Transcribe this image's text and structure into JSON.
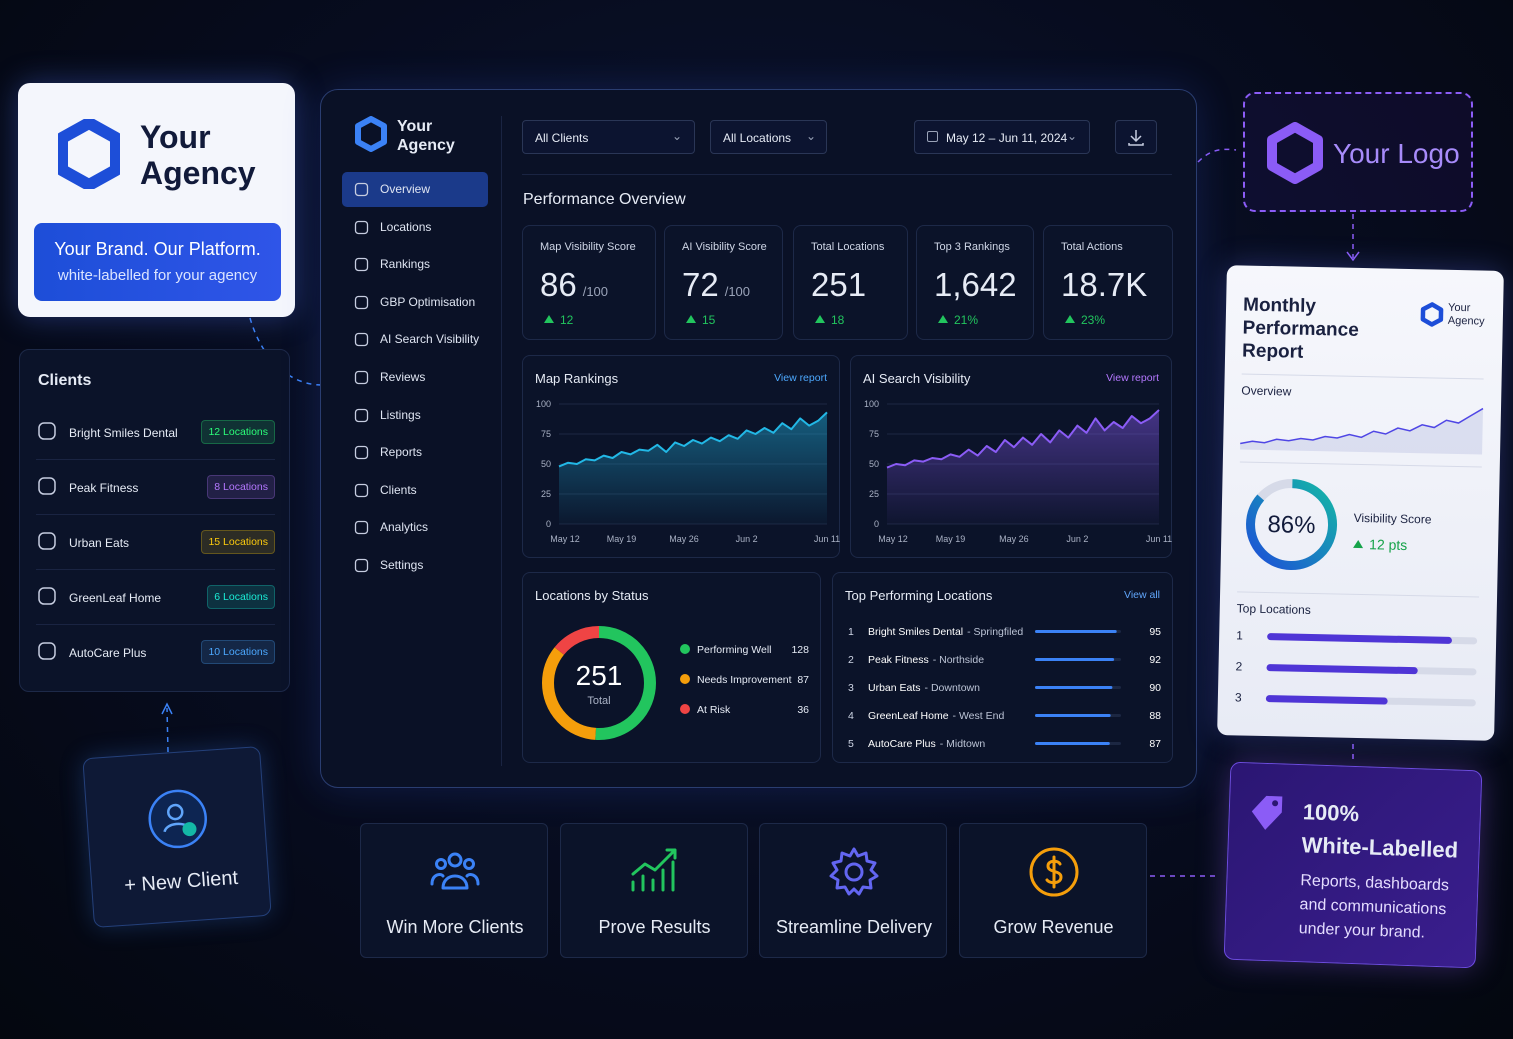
{
  "agency_card": {
    "name": [
      "Your",
      "Agency"
    ],
    "tagline": "Your Brand. Our Platform.",
    "subtitle": "white-labelled for your agency"
  },
  "clients": {
    "title": "Clients",
    "items": [
      {
        "name": "Bright Smiles Dental",
        "badge": "12 Locations",
        "color": "#22c55e"
      },
      {
        "name": "Peak Fitness",
        "badge": "8 Locations",
        "color": "#8b5cf6"
      },
      {
        "name": "Urban Eats",
        "badge": "15 Locations",
        "color": "#f59e0b"
      },
      {
        "name": "GreenLeaf Home",
        "badge": "6 Locations",
        "color": "#14b8a6"
      },
      {
        "name": "AutoCare Plus",
        "badge": "10 Locations",
        "color": "#3b82f6"
      }
    ]
  },
  "new_client": "+ New Client",
  "dashboard": {
    "brand": [
      "Your",
      "Agency"
    ],
    "nav": [
      "Overview",
      "Locations",
      "Rankings",
      "GBP Optimisation",
      "AI Search Visibility",
      "Reviews",
      "Listings",
      "Reports",
      "Clients",
      "Analytics",
      "Settings"
    ],
    "filters": {
      "clients": "All Clients",
      "locations": "All Locations",
      "dates": "May 12 – Jun 11, 2024"
    },
    "heading": "Performance Overview",
    "kpis": [
      {
        "label": "Map Visibility Score",
        "value": "86",
        "unit": "/100",
        "delta": "12"
      },
      {
        "label": "AI Visibility Score",
        "value": "72",
        "unit": "/100",
        "delta": "15"
      },
      {
        "label": "Total Locations",
        "value": "251",
        "delta": "18"
      },
      {
        "label": "Top 3 Rankings",
        "value": "1,642",
        "delta": "21%"
      },
      {
        "label": "Total Actions",
        "value": "18.7K",
        "delta": "23%"
      }
    ],
    "charts": [
      {
        "type": "line",
        "title": "Map Rankings",
        "link": "View report",
        "color": "#22b8e6",
        "categories": [
          "May 12",
          null,
          null,
          null,
          null,
          null,
          null,
          "May 19",
          null,
          null,
          null,
          null,
          null,
          null,
          "May 26",
          null,
          null,
          null,
          null,
          null,
          null,
          "Jun 2",
          null,
          null,
          null,
          null,
          null,
          null,
          null,
          null,
          "Jun 11"
        ],
        "values": [
          48,
          51,
          50,
          54,
          53,
          57,
          55,
          60,
          58,
          62,
          61,
          66,
          60,
          68,
          65,
          70,
          67,
          72,
          69,
          74,
          71,
          78,
          75,
          80,
          76,
          84,
          79,
          88,
          82,
          86,
          93
        ],
        "ylim": [
          0,
          100
        ],
        "yticks": [
          0,
          25,
          50,
          75,
          100
        ],
        "grid": true
      },
      {
        "type": "line",
        "title": "AI Search Visibility",
        "link": "View report",
        "color": "#8b5cf6",
        "categories": [
          "May 12",
          null,
          null,
          null,
          null,
          null,
          null,
          "May 19",
          null,
          null,
          null,
          null,
          null,
          null,
          "May 26",
          null,
          null,
          null,
          null,
          null,
          null,
          "Jun 2",
          null,
          null,
          null,
          null,
          null,
          null,
          null,
          null,
          "Jun 11"
        ],
        "values": [
          47,
          50,
          49,
          53,
          52,
          55,
          54,
          58,
          56,
          62,
          57,
          65,
          60,
          70,
          64,
          72,
          66,
          75,
          68,
          78,
          72,
          82,
          76,
          88,
          78,
          85,
          80,
          90,
          84,
          88,
          95
        ],
        "ylim": [
          0,
          100
        ],
        "yticks": [
          0,
          25,
          50,
          75,
          100
        ],
        "grid": true
      }
    ],
    "status": {
      "type": "donut",
      "title": "Locations by Status",
      "total": "251",
      "total_label": "Total",
      "series": [
        {
          "name": "Performing Well",
          "value": 128,
          "color": "#22c55e"
        },
        {
          "name": "Needs Improvement",
          "value": 87,
          "color": "#f59e0b"
        },
        {
          "name": "At Risk",
          "value": 36,
          "color": "#ef4444"
        }
      ]
    },
    "top": {
      "title": "Top Performing Locations",
      "link": "View all",
      "color": "#3b82f6",
      "items": [
        {
          "rank": "1",
          "name": "Bright Smiles Dental",
          "area": "- Springfiled",
          "value": 95
        },
        {
          "rank": "2",
          "name": "Peak Fitness",
          "area": "- Northside",
          "value": 92
        },
        {
          "rank": "3",
          "name": "Urban Eats",
          "area": "- Downtown",
          "value": 90
        },
        {
          "rank": "4",
          "name": "GreenLeaf Home",
          "area": "- West End",
          "value": 88
        },
        {
          "rank": "5",
          "name": "AutoCare Plus",
          "area": "- Midtown",
          "value": 87
        }
      ]
    }
  },
  "logo_card": "Your Logo",
  "report": {
    "title": [
      "Monthly",
      "Performance",
      "Report"
    ],
    "brand": [
      "Your",
      "Agency"
    ],
    "overview": "Overview",
    "trend": [
      40,
      42,
      41,
      44,
      43,
      45,
      44,
      47,
      46,
      49,
      47,
      52,
      50,
      55,
      53,
      58,
      56,
      62,
      60,
      66,
      72
    ],
    "score": {
      "value": 86,
      "label": "86%"
    },
    "score_title": "Visibility Score",
    "delta": "12 pts",
    "top_title": "Top Locations",
    "bars": [
      {
        "rank": "1",
        "value": 88
      },
      {
        "rank": "2",
        "value": 72
      },
      {
        "rank": "3",
        "value": 58
      }
    ]
  },
  "white_label": {
    "title": [
      "100%",
      "White-Labelled"
    ],
    "text": [
      "Reports, dashboards",
      "and communications",
      "under your brand."
    ]
  },
  "features": [
    "Win More Clients",
    "Prove Results",
    "Streamline Delivery",
    "Grow Revenue"
  ]
}
